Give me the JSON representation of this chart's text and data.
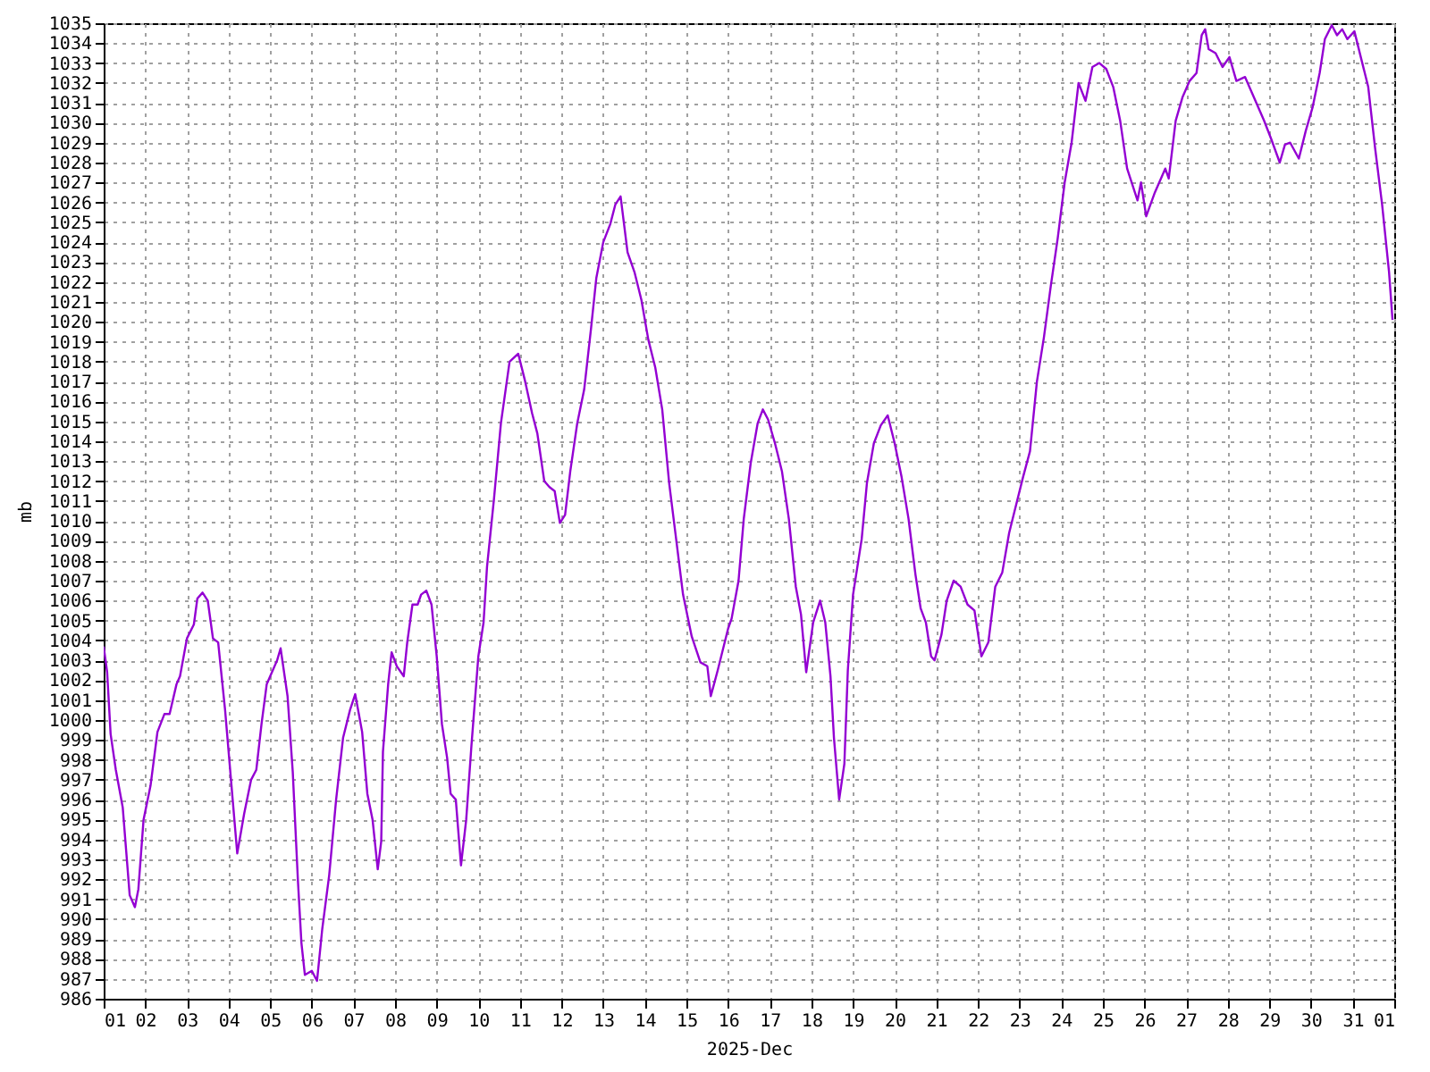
{
  "chart_data": {
    "type": "line",
    "xlabel": "2025-Dec",
    "ylabel": "mb",
    "grid": true,
    "xlim": [
      "2025-12-01",
      "2026-01-01"
    ],
    "xticks": [
      {
        "value": "2025-12-01",
        "label": "01"
      },
      {
        "value": "2025-12-02",
        "label": "02"
      },
      {
        "value": "2025-12-03",
        "label": "03"
      },
      {
        "value": "2025-12-04",
        "label": "04"
      },
      {
        "value": "2025-12-05",
        "label": "05"
      },
      {
        "value": "2025-12-06",
        "label": "06"
      },
      {
        "value": "2025-12-07",
        "label": "07"
      },
      {
        "value": "2025-12-08",
        "label": "08"
      },
      {
        "value": "2025-12-09",
        "label": "09"
      },
      {
        "value": "2025-12-10",
        "label": "10"
      },
      {
        "value": "2025-12-11",
        "label": "11"
      },
      {
        "value": "2025-12-12",
        "label": "12"
      },
      {
        "value": "2025-12-13",
        "label": "13"
      },
      {
        "value": "2025-12-14",
        "label": "14"
      },
      {
        "value": "2025-12-15",
        "label": "15"
      },
      {
        "value": "2025-12-16",
        "label": "16"
      },
      {
        "value": "2025-12-17",
        "label": "17"
      },
      {
        "value": "2025-12-18",
        "label": "18"
      },
      {
        "value": "2025-12-19",
        "label": "19"
      },
      {
        "value": "2025-12-20",
        "label": "20"
      },
      {
        "value": "2025-12-21",
        "label": "21"
      },
      {
        "value": "2025-12-22",
        "label": "22"
      },
      {
        "value": "2025-12-23",
        "label": "23"
      },
      {
        "value": "2025-12-24",
        "label": "24"
      },
      {
        "value": "2025-12-25",
        "label": "25"
      },
      {
        "value": "2025-12-26",
        "label": "26"
      },
      {
        "value": "2025-12-27",
        "label": "27"
      },
      {
        "value": "2025-12-28",
        "label": "28"
      },
      {
        "value": "2025-12-29",
        "label": "29"
      },
      {
        "value": "2025-12-30",
        "label": "30"
      },
      {
        "value": "2025-12-31",
        "label": "31"
      },
      {
        "value": "2026-01-01",
        "label": "01"
      }
    ],
    "ylim": [
      986,
      1035
    ],
    "yticks": [
      986,
      987,
      988,
      989,
      990,
      991,
      992,
      993,
      994,
      995,
      996,
      997,
      998,
      999,
      1000,
      1001,
      1002,
      1003,
      1004,
      1005,
      1006,
      1007,
      1008,
      1009,
      1010,
      1011,
      1012,
      1013,
      1014,
      1015,
      1016,
      1017,
      1018,
      1019,
      1020,
      1021,
      1022,
      1023,
      1024,
      1025,
      1026,
      1027,
      1028,
      1029,
      1030,
      1031,
      1032,
      1033,
      1034,
      1035
    ],
    "series": [
      {
        "color": "#9400d3",
        "x": [
          "2025-12-01T00:00",
          "2025-12-01T02:00",
          "2025-12-01T04:00",
          "2025-12-01T07:00",
          "2025-12-01T11:00",
          "2025-12-01T13:00",
          "2025-12-01T15:00",
          "2025-12-01T18:00",
          "2025-12-01T20:00",
          "2025-12-01T23:00",
          "2025-12-02T03:00",
          "2025-12-02T07:00",
          "2025-12-02T11:00",
          "2025-12-02T14:00",
          "2025-12-02T18:00",
          "2025-12-02T20:00",
          "2025-12-03T00:00",
          "2025-12-03T04:00",
          "2025-12-03T06:00",
          "2025-12-03T09:00",
          "2025-12-03T12:00",
          "2025-12-03T15:00",
          "2025-12-03T18:00",
          "2025-12-03T22:00",
          "2025-12-04T01:00",
          "2025-12-04T05:00",
          "2025-12-04T09:00",
          "2025-12-04T13:00",
          "2025-12-04T16:00",
          "2025-12-04T19:00",
          "2025-12-04T22:00",
          "2025-12-05T01:00",
          "2025-12-05T04:00",
          "2025-12-05T06:00",
          "2025-12-05T10:00",
          "2025-12-05T13:00",
          "2025-12-05T16:00",
          "2025-12-05T18:00",
          "2025-12-05T20:00",
          "2025-12-06T00:00",
          "2025-12-06T03:00",
          "2025-12-06T06:00",
          "2025-12-06T10:00",
          "2025-12-06T14:00",
          "2025-12-06T18:00",
          "2025-12-06T22:00",
          "2025-12-07T01:00",
          "2025-12-07T05:00",
          "2025-12-07T08:00",
          "2025-12-07T11:00",
          "2025-12-07T14:00",
          "2025-12-07T16:00",
          "2025-12-07T17:00",
          "2025-12-07T20:00",
          "2025-12-07T22:00",
          "2025-12-08T01:00",
          "2025-12-08T05:00",
          "2025-12-08T07:00",
          "2025-12-08T10:00",
          "2025-12-08T13:00",
          "2025-12-08T15:00",
          "2025-12-08T18:00",
          "2025-12-08T21:00",
          "2025-12-09T00:00",
          "2025-12-09T03:00",
          "2025-12-09T06:00",
          "2025-12-09T08:00",
          "2025-12-09T11:00",
          "2025-12-09T14:00",
          "2025-12-09T17:00",
          "2025-12-09T20:00",
          "2025-12-10T00:00",
          "2025-12-10T03:00",
          "2025-12-10T05:00",
          "2025-12-10T09:00",
          "2025-12-10T13:00",
          "2025-12-10T18:00",
          "2025-12-10T23:00",
          "2025-12-11T03:00",
          "2025-12-11T07:00",
          "2025-12-11T10:00",
          "2025-12-11T14:00",
          "2025-12-11T17:00",
          "2025-12-11T20:00",
          "2025-12-11T23:00",
          "2025-12-12T02:00",
          "2025-12-12T05:00",
          "2025-12-12T09:00",
          "2025-12-12T13:00",
          "2025-12-12T17:00",
          "2025-12-12T20:00",
          "2025-12-13T00:00",
          "2025-12-13T04:00",
          "2025-12-13T07:00",
          "2025-12-13T10:00",
          "2025-12-13T12:00",
          "2025-12-13T14:00",
          "2025-12-13T18:00",
          "2025-12-13T22:00",
          "2025-12-14T02:00",
          "2025-12-14T06:00",
          "2025-12-14T10:00",
          "2025-12-14T14:00",
          "2025-12-14T18:00",
          "2025-12-14T22:00",
          "2025-12-15T03:00",
          "2025-12-15T08:00",
          "2025-12-15T12:00",
          "2025-12-15T14:00",
          "2025-12-15T18:00",
          "2025-12-16T00:00",
          "2025-12-16T02:00",
          "2025-12-16T06:00",
          "2025-12-16T09:00",
          "2025-12-16T13:00",
          "2025-12-16T17:00",
          "2025-12-16T20:00",
          "2025-12-16T23:00",
          "2025-12-17T03:00",
          "2025-12-17T07:00",
          "2025-12-17T11:00",
          "2025-12-17T15:00",
          "2025-12-17T18:00",
          "2025-12-17T21:00",
          "2025-12-18T01:00",
          "2025-12-18T05:00",
          "2025-12-18T08:00",
          "2025-12-18T11:00",
          "2025-12-18T13:00",
          "2025-12-18T16:00",
          "2025-12-18T19:00",
          "2025-12-18T21:00",
          "2025-12-19T00:00",
          "2025-12-19T05:00",
          "2025-12-19T08:00",
          "2025-12-19T12:00",
          "2025-12-19T16:00",
          "2025-12-19T20:00",
          "2025-12-20T00:00",
          "2025-12-20T04:00",
          "2025-12-20T08:00",
          "2025-12-20T12:00",
          "2025-12-20T15:00",
          "2025-12-20T18:00",
          "2025-12-20T21:00",
          "2025-12-20T23:00",
          "2025-12-21T03:00",
          "2025-12-21T06:00",
          "2025-12-21T10:00",
          "2025-12-21T14:00",
          "2025-12-21T18:00",
          "2025-12-21T22:00",
          "2025-12-22T02:00",
          "2025-12-22T06:00",
          "2025-12-22T10:00",
          "2025-12-22T14:00",
          "2025-12-22T18:00",
          "2025-12-22T22:00",
          "2025-12-23T02:00",
          "2025-12-23T06:00",
          "2025-12-23T10:00",
          "2025-12-23T14:00",
          "2025-12-23T18:00",
          "2025-12-23T22:00",
          "2025-12-24T02:00",
          "2025-12-24T06:00",
          "2025-12-24T10:00",
          "2025-12-24T14:00",
          "2025-12-24T18:00",
          "2025-12-24T22:00",
          "2025-12-25T02:00",
          "2025-12-25T06:00",
          "2025-12-25T10:00",
          "2025-12-25T14:00",
          "2025-12-25T20:00",
          "2025-12-25T22:00",
          "2025-12-26T01:00",
          "2025-12-26T06:00",
          "2025-12-26T12:00",
          "2025-12-26T14:00",
          "2025-12-26T18:00",
          "2025-12-26T22:00",
          "2025-12-27T02:00",
          "2025-12-27T06:00",
          "2025-12-27T09:00",
          "2025-12-27T11:00",
          "2025-12-27T13:00",
          "2025-12-27T17:00",
          "2025-12-27T21:00",
          "2025-12-28T01:00",
          "2025-12-28T05:00",
          "2025-12-28T10:00",
          "2025-12-28T15:00",
          "2025-12-28T21:00",
          "2025-12-29T01:00",
          "2025-12-29T06:00",
          "2025-12-29T09:00",
          "2025-12-29T12:00",
          "2025-12-29T17:00",
          "2025-12-29T21:00",
          "2025-12-30T01:00",
          "2025-12-30T05:00",
          "2025-12-30T08:00",
          "2025-12-30T12:00",
          "2025-12-30T15:00",
          "2025-12-30T18:00",
          "2025-12-30T21:00",
          "2025-12-31T01:00",
          "2025-12-31T05:00",
          "2025-12-31T09:00",
          "2025-12-31T13:00",
          "2025-12-31T17:00",
          "2025-12-31T21:00",
          "2025-12-31T23:00"
        ],
        "values": [
          1003.7,
          1002.4,
          999.3,
          997.5,
          995.6,
          993.4,
          991.2,
          990.6,
          991.5,
          995.0,
          996.7,
          999.4,
          1000.3,
          1000.3,
          1001.8,
          1002.2,
          1004.1,
          1004.8,
          1006.1,
          1006.4,
          1006.0,
          1004.1,
          1003.9,
          1000.5,
          997.4,
          993.3,
          995.3,
          997.0,
          997.5,
          999.8,
          1001.8,
          1002.4,
          1003.0,
          1003.6,
          1001.2,
          997.4,
          991.9,
          988.8,
          987.2,
          987.4,
          986.9,
          989.5,
          992.2,
          996.0,
          999.1,
          1000.5,
          1001.3,
          999.4,
          996.3,
          995.0,
          992.5,
          993.9,
          998.4,
          1001.8,
          1003.4,
          1002.7,
          1002.2,
          1003.9,
          1005.8,
          1005.8,
          1006.3,
          1006.5,
          1005.8,
          1003.2,
          999.8,
          998.1,
          996.3,
          996.0,
          992.7,
          995.0,
          998.7,
          1003.2,
          1004.9,
          1007.7,
          1011.1,
          1014.9,
          1018.0,
          1018.4,
          1017.0,
          1015.4,
          1014.4,
          1012.0,
          1011.7,
          1011.5,
          1009.9,
          1010.3,
          1012.5,
          1014.9,
          1016.6,
          1019.7,
          1022.2,
          1024.0,
          1024.9,
          1025.9,
          1026.3,
          1024.9,
          1023.5,
          1022.5,
          1021.1,
          1019.1,
          1017.7,
          1015.6,
          1011.9,
          1009.1,
          1006.3,
          1004.2,
          1002.9,
          1002.7,
          1001.2,
          1002.5,
          1004.6,
          1005.1,
          1007.0,
          1010.1,
          1012.9,
          1014.9,
          1015.6,
          1015.1,
          1013.9,
          1012.5,
          1010.1,
          1006.7,
          1005.3,
          1002.4,
          1004.9,
          1006.0,
          1004.9,
          1002.2,
          999.1,
          996.0,
          997.8,
          1002.5,
          1006.3,
          1009.1,
          1011.9,
          1013.9,
          1014.8,
          1015.3,
          1013.9,
          1012.2,
          1010.1,
          1007.3,
          1005.6,
          1004.9,
          1003.2,
          1003.0,
          1004.3,
          1006.0,
          1007.0,
          1006.7,
          1005.8,
          1005.5,
          1003.2,
          1003.9,
          1006.7,
          1007.4,
          1009.4,
          1010.8,
          1012.2,
          1013.5,
          1017.0,
          1019.2,
          1021.8,
          1024.2,
          1027.0,
          1029.0,
          1032.0,
          1031.1,
          1032.8,
          1033.0,
          1032.7,
          1031.8,
          1030.1,
          1027.7,
          1026.1,
          1027.0,
          1025.3,
          1026.5,
          1027.7,
          1027.2,
          1030.1,
          1031.3,
          1032.1,
          1032.5,
          1034.4,
          1034.7,
          1033.7,
          1033.5,
          1032.8,
          1033.3,
          1032.1,
          1032.3,
          1031.3,
          1030.1,
          1029.2,
          1028.0,
          1028.9,
          1029.0,
          1028.2,
          1029.6,
          1030.8,
          1032.5,
          1034.2,
          1034.9,
          1034.4,
          1034.7,
          1034.2,
          1034.6,
          1033.2,
          1031.8,
          1028.7,
          1025.9,
          1022.5,
          1020.1
        ]
      }
    ]
  }
}
